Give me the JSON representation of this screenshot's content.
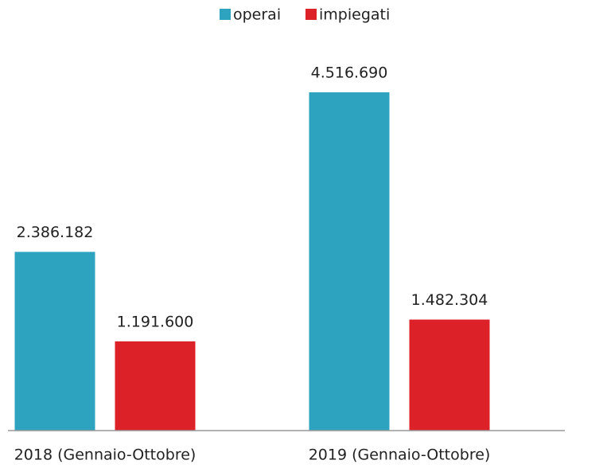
{
  "chart_data": {
    "type": "bar",
    "categories": [
      "2018 (Gennaio-Ottobre)",
      "2019 (Gennaio-Ottobre)"
    ],
    "series": [
      {
        "name": "operai",
        "color": "#2ea3c0",
        "values": [
          2386182,
          4516690
        ],
        "value_labels": [
          "2.386.182",
          "4.516.690"
        ]
      },
      {
        "name": "impiegati",
        "color": "#dc2128",
        "values": [
          1191600,
          1482304
        ],
        "value_labels": [
          "1.191.600",
          "1.482.304"
        ]
      }
    ],
    "legend": "top"
  }
}
